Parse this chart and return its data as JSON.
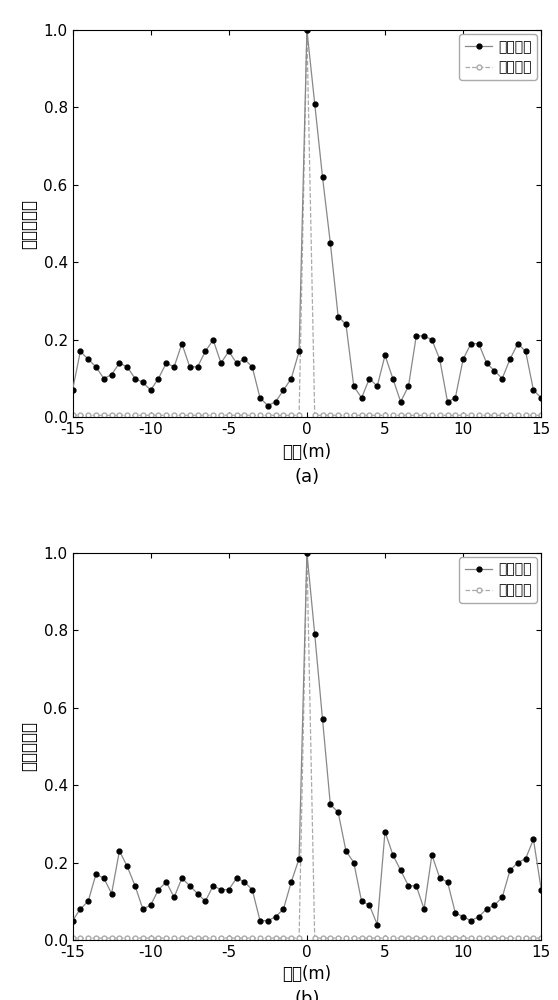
{
  "subplot_a": {
    "mf_x": [
      -15.0,
      -14.5,
      -14.0,
      -13.5,
      -13.0,
      -12.5,
      -12.0,
      -11.5,
      -11.0,
      -10.5,
      -10.0,
      -9.5,
      -9.0,
      -8.5,
      -8.0,
      -7.5,
      -7.0,
      -6.5,
      -6.0,
      -5.5,
      -5.0,
      -4.5,
      -4.0,
      -3.5,
      -3.0,
      -2.5,
      -2.0,
      -1.5,
      -1.0,
      -0.5,
      0.0,
      0.5,
      1.0,
      1.5,
      2.0,
      2.5,
      3.0,
      3.5,
      4.0,
      4.5,
      5.0,
      5.5,
      6.0,
      6.5,
      7.0,
      7.5,
      8.0,
      8.5,
      9.0,
      9.5,
      10.0,
      10.5,
      11.0,
      11.5,
      12.0,
      12.5,
      13.0,
      13.5,
      14.0,
      14.5,
      15.0
    ],
    "mf_y": [
      0.07,
      0.17,
      0.15,
      0.13,
      0.1,
      0.11,
      0.14,
      0.13,
      0.1,
      0.09,
      0.07,
      0.1,
      0.14,
      0.13,
      0.19,
      0.13,
      0.13,
      0.17,
      0.2,
      0.14,
      0.17,
      0.14,
      0.15,
      0.13,
      0.05,
      0.03,
      0.04,
      0.07,
      0.1,
      0.17,
      1.0,
      0.81,
      0.62,
      0.45,
      0.26,
      0.24,
      0.08,
      0.05,
      0.1,
      0.08,
      0.16,
      0.1,
      0.04,
      0.08,
      0.21,
      0.21,
      0.2,
      0.15,
      0.04,
      0.05,
      0.15,
      0.19,
      0.19,
      0.14,
      0.12,
      0.1,
      0.15,
      0.19,
      0.17,
      0.07,
      0.05
    ]
  },
  "subplot_b": {
    "mf_x": [
      -15.0,
      -14.5,
      -14.0,
      -13.5,
      -13.0,
      -12.5,
      -12.0,
      -11.5,
      -11.0,
      -10.5,
      -10.0,
      -9.5,
      -9.0,
      -8.5,
      -8.0,
      -7.5,
      -7.0,
      -6.5,
      -6.0,
      -5.5,
      -5.0,
      -4.5,
      -4.0,
      -3.5,
      -3.0,
      -2.5,
      -2.0,
      -1.5,
      -1.0,
      -0.5,
      0.0,
      0.5,
      1.0,
      1.5,
      2.0,
      2.5,
      3.0,
      3.5,
      4.0,
      4.5,
      5.0,
      5.5,
      6.0,
      6.5,
      7.0,
      7.5,
      8.0,
      8.5,
      9.0,
      9.5,
      10.0,
      10.5,
      11.0,
      11.5,
      12.0,
      12.5,
      13.0,
      13.5,
      14.0,
      14.5,
      15.0
    ],
    "mf_y": [
      0.05,
      0.08,
      0.1,
      0.17,
      0.16,
      0.12,
      0.23,
      0.19,
      0.14,
      0.08,
      0.09,
      0.13,
      0.15,
      0.11,
      0.16,
      0.14,
      0.12,
      0.1,
      0.14,
      0.13,
      0.13,
      0.16,
      0.15,
      0.13,
      0.05,
      0.05,
      0.06,
      0.08,
      0.15,
      0.21,
      1.0,
      0.79,
      0.57,
      0.35,
      0.33,
      0.23,
      0.2,
      0.1,
      0.09,
      0.04,
      0.28,
      0.22,
      0.18,
      0.14,
      0.14,
      0.08,
      0.22,
      0.16,
      0.15,
      0.07,
      0.06,
      0.05,
      0.06,
      0.08,
      0.09,
      0.11,
      0.18,
      0.2,
      0.21,
      0.26,
      0.13
    ]
  },
  "cs_x": [
    -15.0,
    -14.5,
    -14.0,
    -13.5,
    -13.0,
    -12.5,
    -12.0,
    -11.5,
    -11.0,
    -10.5,
    -10.0,
    -9.5,
    -9.0,
    -8.5,
    -8.0,
    -7.5,
    -7.0,
    -6.5,
    -6.0,
    -5.5,
    -5.0,
    -4.5,
    -4.0,
    -3.5,
    -3.0,
    -2.5,
    -2.0,
    -1.5,
    -1.0,
    -0.5,
    0.0,
    0.5,
    1.0,
    1.5,
    2.0,
    2.5,
    3.0,
    3.5,
    4.0,
    4.5,
    5.0,
    5.5,
    6.0,
    6.5,
    7.0,
    7.5,
    8.0,
    8.5,
    9.0,
    9.5,
    10.0,
    10.5,
    11.0,
    11.5,
    12.0,
    12.5,
    13.0,
    13.5,
    14.0,
    14.5,
    15.0
  ],
  "cs_y": [
    0.005,
    0.005,
    0.005,
    0.005,
    0.005,
    0.005,
    0.005,
    0.005,
    0.005,
    0.005,
    0.005,
    0.005,
    0.005,
    0.005,
    0.005,
    0.005,
    0.005,
    0.005,
    0.005,
    0.005,
    0.005,
    0.005,
    0.005,
    0.005,
    0.005,
    0.005,
    0.005,
    0.005,
    0.005,
    0.005,
    1.0,
    0.005,
    0.005,
    0.005,
    0.005,
    0.005,
    0.005,
    0.005,
    0.005,
    0.005,
    0.005,
    0.005,
    0.005,
    0.005,
    0.005,
    0.005,
    0.005,
    0.005,
    0.005,
    0.005,
    0.005,
    0.005,
    0.005,
    0.005,
    0.005,
    0.005,
    0.005,
    0.005,
    0.005,
    0.005,
    0.005
  ],
  "xlabel": "距离(m)",
  "ylabel": "归一化幅度",
  "legend_mf": "匹配滤波",
  "legend_cs": "压缩感知",
  "label_a": "(a)",
  "label_b": "(b)",
  "xlim": [
    -15,
    15
  ],
  "ylim": [
    0,
    1
  ],
  "yticks": [
    0,
    0.2,
    0.4,
    0.6,
    0.8,
    1.0
  ],
  "xticks": [
    -15,
    -10,
    -5,
    0,
    5,
    10,
    15
  ],
  "mf_color": "#888888",
  "mf_marker_color": "#000000",
  "cs_color": "#aaaaaa",
  "background_color": "#ffffff",
  "dpi": 100,
  "figsize": [
    5.58,
    10.0
  ]
}
